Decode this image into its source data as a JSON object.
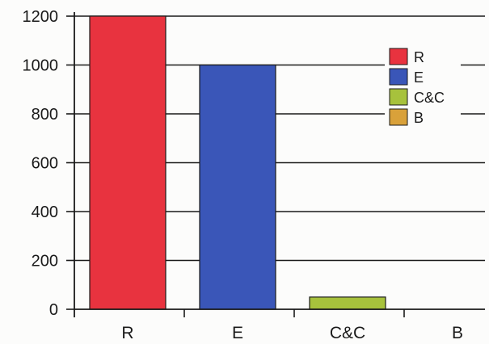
{
  "chart_data": {
    "type": "bar",
    "title": "",
    "xlabel": "",
    "ylabel": "",
    "categories": [
      "R",
      "E",
      "C&C",
      "B"
    ],
    "values": [
      1200,
      1000,
      50,
      0
    ],
    "colors": [
      "#e8333f",
      "#3a56b8",
      "#a7c23c",
      "#d9a13a"
    ],
    "y_ticks": [
      "0",
      "200",
      "400",
      "600",
      "800",
      "1000",
      "1200"
    ],
    "ylim": [
      0,
      1200
    ],
    "grid": true,
    "legend": {
      "position": "top-right",
      "entries": [
        {
          "label": "R",
          "color": "#e8333f"
        },
        {
          "label": "E",
          "color": "#3a56b8"
        },
        {
          "label": "C&C",
          "color": "#a7c23c"
        },
        {
          "label": "B",
          "color": "#d9a13a"
        }
      ]
    }
  }
}
